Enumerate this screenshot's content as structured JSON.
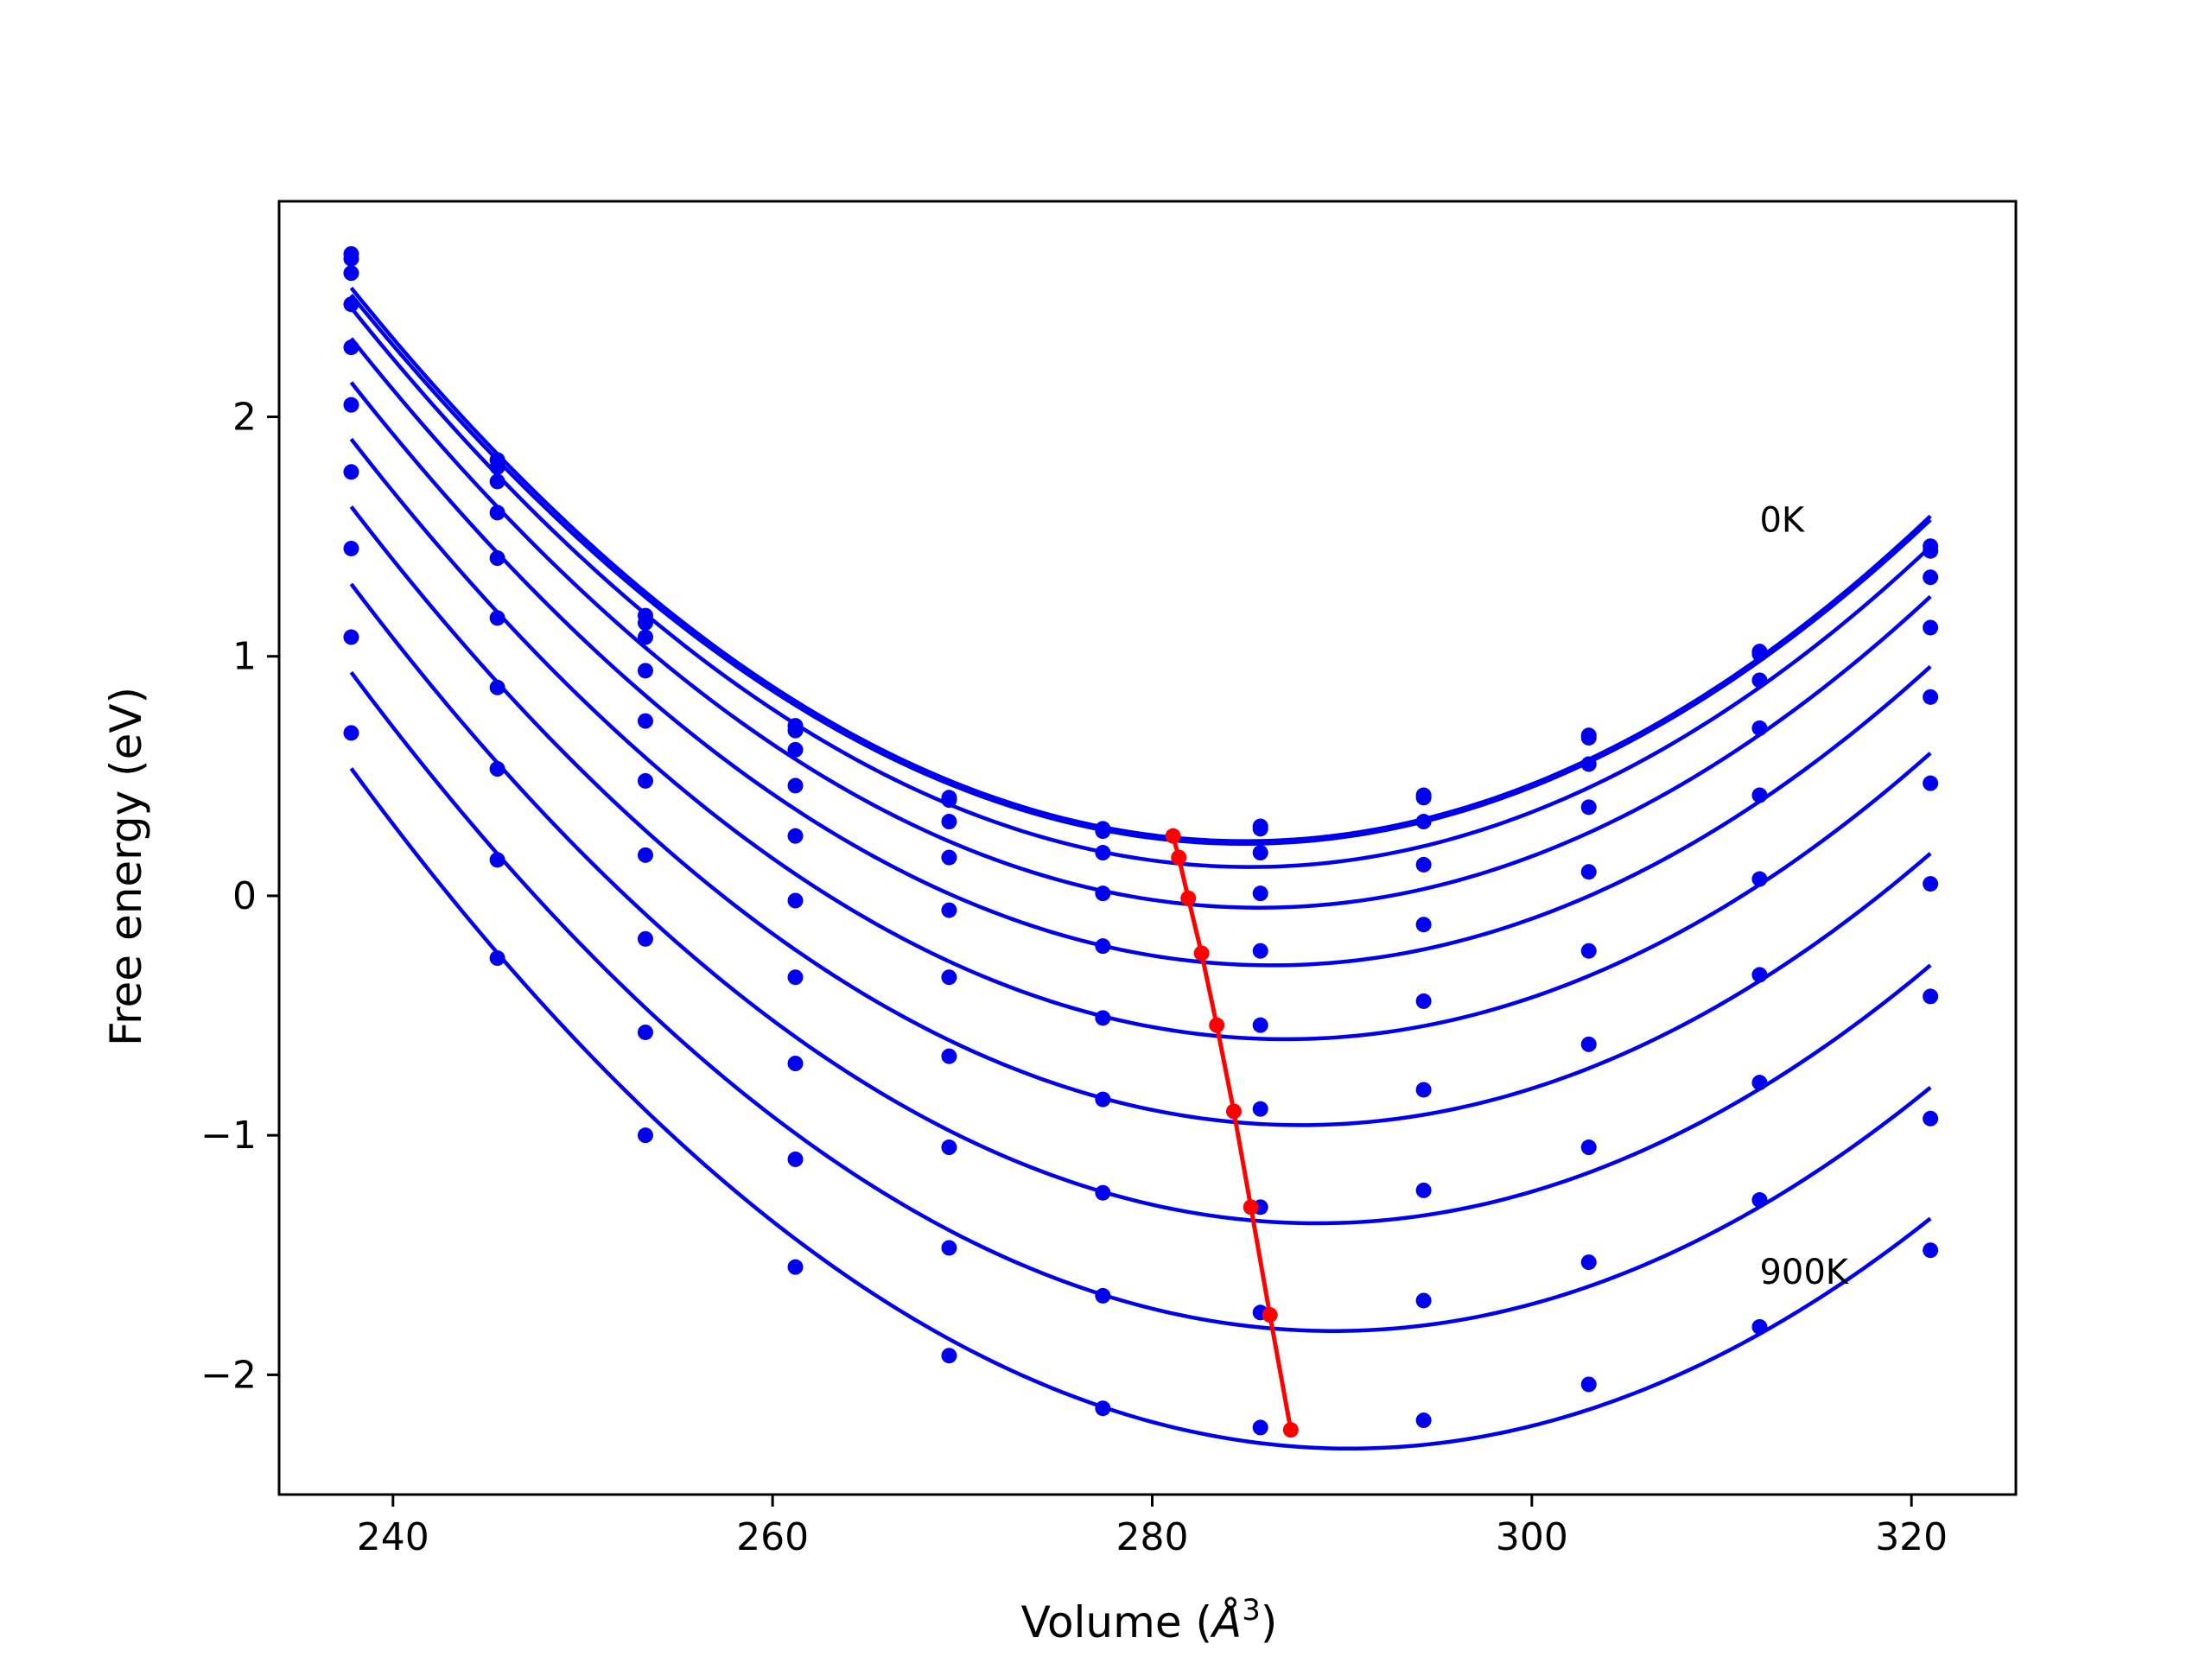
{
  "chart_data": {
    "type": "line",
    "title": "",
    "xlabel_main": "Volume (",
    "xlabel_unit": "Å",
    "xlabel_sup": "3",
    "xlabel_close": ")",
    "ylabel": "Free energy (eV)",
    "xlim": [
      234,
      325.5
    ],
    "ylim": [
      -2.5,
      2.9
    ],
    "xticks": [
      240,
      260,
      280,
      300,
      320
    ],
    "xtick_labels": [
      "240",
      "260",
      "280",
      "300",
      "320"
    ],
    "yticks": [
      -2,
      -1,
      0,
      1,
      2
    ],
    "ytick_labels": [
      "−2",
      "−1",
      "0",
      "1",
      "2"
    ],
    "grid": false,
    "curve_color": "#0000ee",
    "minima_color": "#ff0000",
    "x": [
      237.8,
      245.5,
      253.3,
      261.2,
      269.3,
      277.4,
      285.7,
      294.3,
      303.0,
      312.0,
      321.0
    ],
    "series": [
      {
        "name": "0K",
        "values": [
          2.68,
          1.82,
          1.17,
          0.71,
          0.41,
          0.28,
          0.29,
          0.42,
          0.67,
          1.02,
          1.46
        ]
      },
      {
        "values": [
          2.66,
          1.79,
          1.14,
          0.69,
          0.4,
          0.27,
          0.28,
          0.41,
          0.66,
          1.01,
          1.44
        ]
      },
      {
        "values": [
          2.6,
          1.73,
          1.08,
          0.61,
          0.31,
          0.18,
          0.18,
          0.31,
          0.55,
          0.9,
          1.33
        ]
      },
      {
        "values": [
          2.47,
          1.6,
          0.94,
          0.46,
          0.16,
          0.01,
          0.01,
          0.13,
          0.37,
          0.7,
          1.12
        ]
      },
      {
        "values": [
          2.29,
          1.41,
          0.73,
          0.25,
          -0.06,
          -0.21,
          -0.23,
          -0.12,
          0.1,
          0.42,
          0.83
        ]
      },
      {
        "values": [
          2.05,
          1.16,
          0.48,
          -0.02,
          -0.34,
          -0.51,
          -0.54,
          -0.44,
          -0.23,
          0.07,
          0.47
        ]
      },
      {
        "values": [
          1.77,
          0.87,
          0.17,
          -0.34,
          -0.67,
          -0.85,
          -0.89,
          -0.81,
          -0.62,
          -0.33,
          0.05
        ]
      },
      {
        "values": [
          1.45,
          0.53,
          -0.18,
          -0.7,
          -1.05,
          -1.24,
          -1.3,
          -1.23,
          -1.05,
          -0.78,
          -0.42
        ]
      },
      {
        "values": [
          1.08,
          0.15,
          -0.57,
          -1.1,
          -1.47,
          -1.67,
          -1.74,
          -1.69,
          -1.53,
          -1.27,
          -0.93
        ]
      },
      {
        "name": "900K",
        "values": [
          0.68,
          -0.26,
          -1.0,
          -1.55,
          -1.92,
          -2.14,
          -2.22,
          -2.19,
          -2.04,
          -1.8,
          -1.48
        ]
      }
    ],
    "minima": {
      "x": [
        281.1,
        281.4,
        281.9,
        282.6,
        283.4,
        284.3,
        285.2,
        286.2,
        287.3
      ],
      "y": [
        0.25,
        0.16,
        -0.01,
        -0.24,
        -0.54,
        -0.9,
        -1.3,
        -1.75,
        -2.23
      ]
    },
    "annotations": [
      {
        "text": "0K",
        "x": 312,
        "y": 1.52
      },
      {
        "text": "900K",
        "x": 312,
        "y": -1.62
      }
    ]
  }
}
